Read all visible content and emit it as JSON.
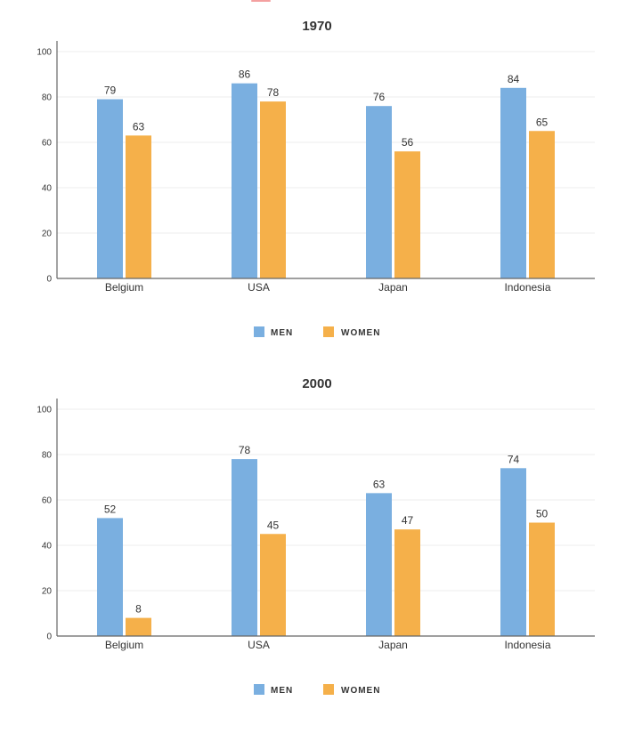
{
  "colors": {
    "men": "#7aafe0",
    "women": "#f5b04a",
    "accent_top": "#f4a0a0"
  },
  "legend": {
    "men_label": "MEN",
    "women_label": "WOMEN"
  },
  "chart_data": [
    {
      "type": "bar",
      "title": "1970",
      "categories": [
        "Belgium",
        "USA",
        "Japan",
        "Indonesia"
      ],
      "series": [
        {
          "name": "MEN",
          "values": [
            79,
            86,
            76,
            84
          ]
        },
        {
          "name": "WOMEN",
          "values": [
            63,
            78,
            56,
            65
          ]
        }
      ],
      "ylim": [
        0,
        100
      ],
      "yticks": [
        0,
        20,
        40,
        60,
        80,
        100
      ],
      "grid": true,
      "legend_position": "bottom"
    },
    {
      "type": "bar",
      "title": "2000",
      "categories": [
        "Belgium",
        "USA",
        "Japan",
        "Indonesia"
      ],
      "series": [
        {
          "name": "MEN",
          "values": [
            52,
            78,
            63,
            74
          ]
        },
        {
          "name": "WOMEN",
          "values": [
            8,
            45,
            47,
            50
          ]
        }
      ],
      "ylim": [
        0,
        100
      ],
      "yticks": [
        0,
        20,
        40,
        60,
        80,
        100
      ],
      "grid": true,
      "legend_position": "bottom"
    }
  ]
}
